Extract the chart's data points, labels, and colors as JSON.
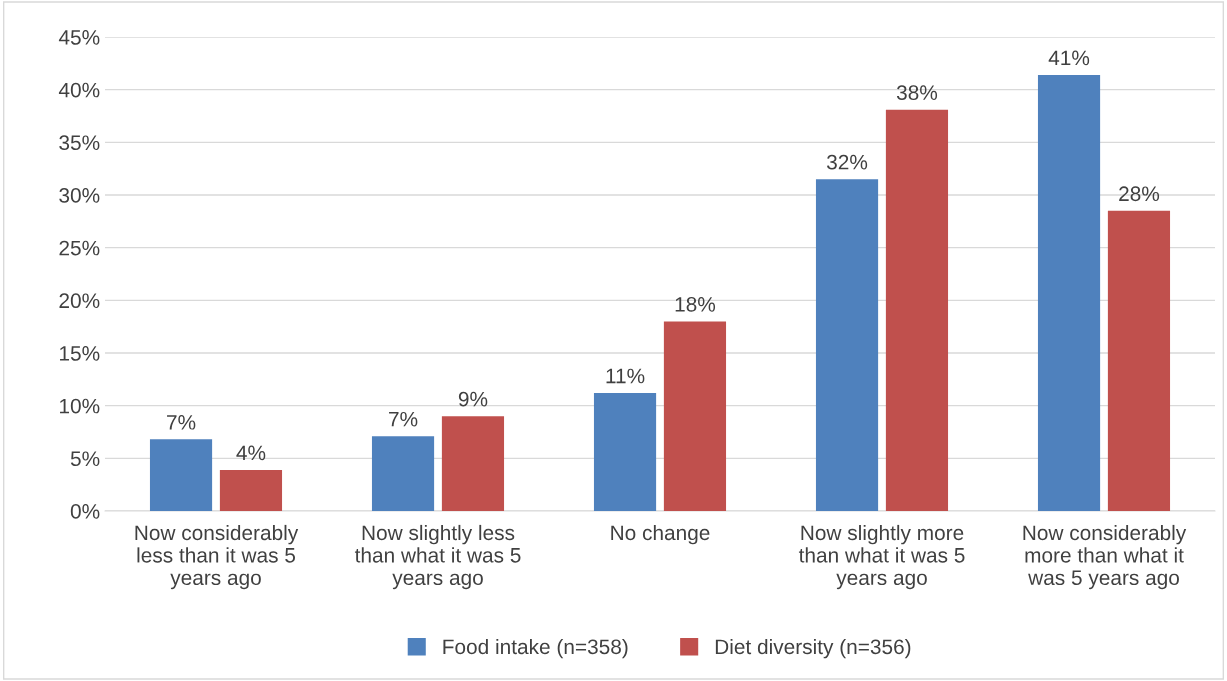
{
  "chart_data": {
    "type": "bar",
    "categories": [
      "Now considerably less than it was 5 years ago",
      "Now slightly less than what it was 5 years ago",
      "No change",
      "Now slightly more than what it was 5 years ago",
      "Now considerably more than what it was 5 years ago"
    ],
    "series": [
      {
        "name": "Food intake (n=358)",
        "color": "#4f81bd",
        "values": [
          6.8,
          7.1,
          11.2,
          31.5,
          41.4
        ],
        "value_labels": [
          "7%",
          "7%",
          "11%",
          "32%",
          "41%"
        ]
      },
      {
        "name": "Diet diversity (n=356)",
        "color": "#c0504d",
        "values": [
          3.9,
          9.0,
          18.0,
          38.1,
          28.5
        ],
        "value_labels": [
          "4%",
          "9%",
          "18%",
          "38%",
          "28%"
        ]
      }
    ],
    "ylim": [
      0,
      45
    ],
    "yticks": [
      {
        "value": 0,
        "label": "0%"
      },
      {
        "value": 5,
        "label": "5%"
      },
      {
        "value": 10,
        "label": "10%"
      },
      {
        "value": 15,
        "label": "15%"
      },
      {
        "value": 20,
        "label": "20%"
      },
      {
        "value": 25,
        "label": "25%"
      },
      {
        "value": 30,
        "label": "30%"
      },
      {
        "value": 35,
        "label": "35%"
      },
      {
        "value": 40,
        "label": "40%"
      },
      {
        "value": 45,
        "label": "45%"
      }
    ],
    "grid": "y",
    "legend": "bottom"
  }
}
